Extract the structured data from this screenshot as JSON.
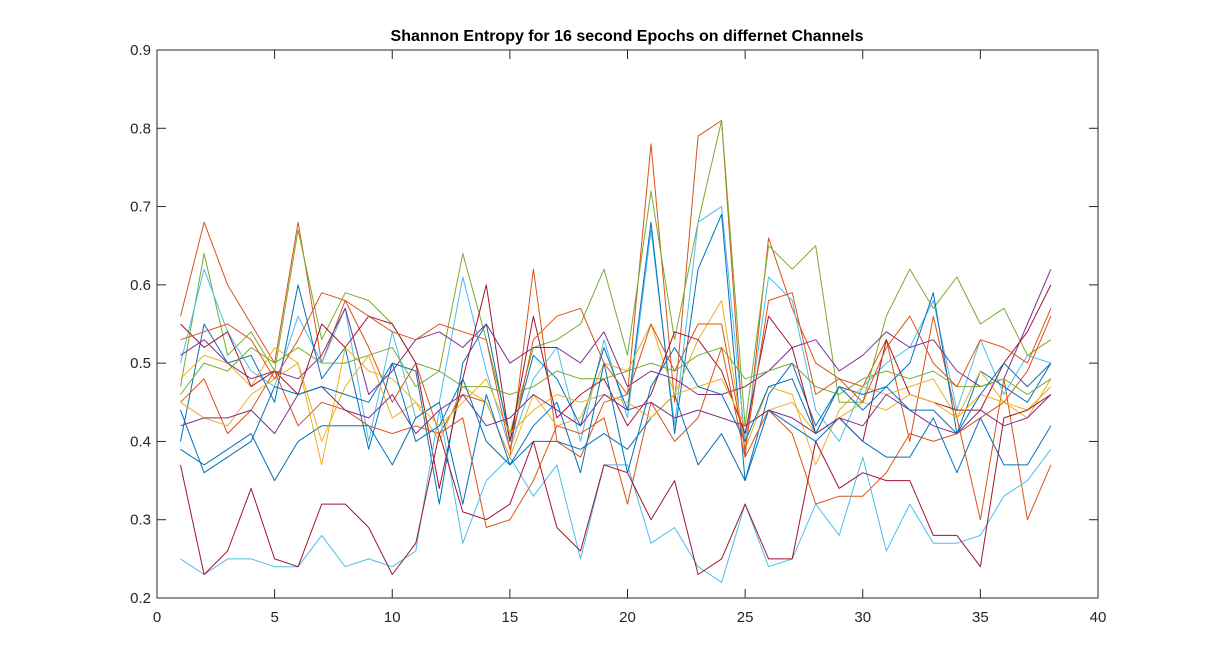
{
  "chart_data": {
    "type": "line",
    "title": "Shannon Entropy for 16 second Epochs on differnet Channels",
    "xlabel": "",
    "ylabel": "",
    "xlim": [
      0,
      40
    ],
    "ylim": [
      0.2,
      0.9
    ],
    "xticks": [
      0,
      5,
      10,
      15,
      20,
      25,
      30,
      35,
      40
    ],
    "yticks": [
      0.2,
      0.3,
      0.4,
      0.5,
      0.6,
      0.7,
      0.8,
      0.9
    ],
    "grid": false,
    "legend": "none",
    "x": [
      1,
      2,
      3,
      4,
      5,
      6,
      7,
      8,
      9,
      10,
      11,
      12,
      13,
      14,
      15,
      16,
      17,
      18,
      19,
      20,
      21,
      22,
      23,
      24,
      25,
      26,
      27,
      28,
      29,
      30,
      31,
      32,
      33,
      34,
      35,
      36,
      37,
      38
    ],
    "series": [
      {
        "color": "#D95319",
        "values": [
          0.56,
          0.68,
          0.6,
          0.55,
          0.5,
          0.68,
          0.5,
          0.58,
          0.52,
          0.45,
          0.5,
          0.41,
          0.46,
          0.45,
          0.38,
          0.62,
          0.4,
          0.38,
          0.45,
          0.46,
          0.78,
          0.45,
          0.79,
          0.81,
          0.38,
          0.66,
          0.57,
          0.5,
          0.48,
          0.47,
          0.53,
          0.4,
          0.56,
          0.43,
          0.3,
          0.48,
          0.3,
          0.37
        ]
      },
      {
        "color": "#77AC30",
        "values": [
          0.47,
          0.64,
          0.51,
          0.54,
          0.49,
          0.67,
          0.53,
          0.59,
          0.58,
          0.55,
          0.5,
          0.49,
          0.64,
          0.53,
          0.41,
          0.52,
          0.53,
          0.55,
          0.62,
          0.51,
          0.72,
          0.53,
          0.68,
          0.81,
          0.42,
          0.65,
          0.62,
          0.65,
          0.45,
          0.45,
          0.56,
          0.62,
          0.57,
          0.61,
          0.55,
          0.57,
          0.51,
          0.53
        ]
      },
      {
        "color": "#4DBEEE",
        "values": [
          0.5,
          0.62,
          0.54,
          0.49,
          0.47,
          0.56,
          0.5,
          0.57,
          0.4,
          0.54,
          0.43,
          0.45,
          0.61,
          0.49,
          0.39,
          0.48,
          0.52,
          0.4,
          0.53,
          0.43,
          0.67,
          0.42,
          0.68,
          0.7,
          0.4,
          0.61,
          0.58,
          0.44,
          0.4,
          0.47,
          0.5,
          0.52,
          0.58,
          0.44,
          0.53,
          0.46,
          0.51,
          0.5
        ]
      },
      {
        "color": "#0072BD",
        "values": [
          0.4,
          0.55,
          0.5,
          0.51,
          0.45,
          0.6,
          0.48,
          0.52,
          0.39,
          0.5,
          0.49,
          0.32,
          0.5,
          0.55,
          0.4,
          0.51,
          0.48,
          0.42,
          0.52,
          0.44,
          0.68,
          0.41,
          0.62,
          0.69,
          0.35,
          0.46,
          0.5,
          0.42,
          0.47,
          0.46,
          0.47,
          0.5,
          0.59,
          0.41,
          0.49,
          0.47,
          0.45,
          0.5
        ]
      },
      {
        "color": "#EDB120",
        "values": [
          0.48,
          0.51,
          0.5,
          0.47,
          0.52,
          0.5,
          0.37,
          0.52,
          0.49,
          0.48,
          0.45,
          0.4,
          0.47,
          0.45,
          0.38,
          0.46,
          0.42,
          0.43,
          0.5,
          0.49,
          0.55,
          0.46,
          0.53,
          0.58,
          0.39,
          0.47,
          0.46,
          0.37,
          0.44,
          0.47,
          0.46,
          0.47,
          0.48,
          0.43,
          0.49,
          0.45,
          0.43,
          0.48
        ]
      },
      {
        "color": "#7E2F8E",
        "values": [
          0.51,
          0.53,
          0.5,
          0.48,
          0.49,
          0.48,
          0.51,
          0.57,
          0.46,
          0.49,
          0.53,
          0.54,
          0.52,
          0.55,
          0.5,
          0.52,
          0.52,
          0.5,
          0.54,
          0.47,
          0.49,
          0.48,
          0.46,
          0.46,
          0.47,
          0.49,
          0.52,
          0.53,
          0.49,
          0.51,
          0.54,
          0.52,
          0.53,
          0.49,
          0.47,
          0.48,
          0.55,
          0.62
        ]
      },
      {
        "color": "#A2142F",
        "values": [
          0.55,
          0.52,
          0.54,
          0.47,
          0.49,
          0.46,
          0.55,
          0.52,
          0.56,
          0.55,
          0.5,
          0.34,
          0.48,
          0.6,
          0.4,
          0.56,
          0.43,
          0.46,
          0.48,
          0.42,
          0.46,
          0.54,
          0.53,
          0.49,
          0.41,
          0.56,
          0.52,
          0.41,
          0.43,
          0.4,
          0.53,
          0.46,
          0.45,
          0.44,
          0.44,
          0.5,
          0.54,
          0.6
        ]
      },
      {
        "color": "#D95319",
        "values": [
          0.45,
          0.48,
          0.41,
          0.44,
          0.49,
          0.42,
          0.45,
          0.44,
          0.42,
          0.41,
          0.42,
          0.41,
          0.43,
          0.29,
          0.3,
          0.35,
          0.42,
          0.41,
          0.43,
          0.32,
          0.45,
          0.4,
          0.43,
          0.52,
          0.38,
          0.44,
          0.41,
          0.32,
          0.33,
          0.33,
          0.36,
          0.41,
          0.4,
          0.41,
          0.43,
          0.45,
          0.49,
          0.56
        ]
      },
      {
        "color": "#77AC30",
        "values": [
          0.46,
          0.5,
          0.49,
          0.52,
          0.5,
          0.52,
          0.5,
          0.5,
          0.51,
          0.52,
          0.47,
          0.49,
          0.47,
          0.47,
          0.46,
          0.47,
          0.49,
          0.48,
          0.48,
          0.49,
          0.5,
          0.49,
          0.51,
          0.52,
          0.48,
          0.49,
          0.5,
          0.47,
          0.46,
          0.48,
          0.49,
          0.48,
          0.49,
          0.47,
          0.47,
          0.48,
          0.46,
          0.48
        ]
      },
      {
        "color": "#4DBEEE",
        "values": [
          0.25,
          0.23,
          0.25,
          0.25,
          0.24,
          0.24,
          0.28,
          0.24,
          0.25,
          0.24,
          0.26,
          0.44,
          0.27,
          0.35,
          0.38,
          0.33,
          0.37,
          0.25,
          0.37,
          0.37,
          0.27,
          0.29,
          0.24,
          0.22,
          0.32,
          0.24,
          0.25,
          0.32,
          0.28,
          0.38,
          0.26,
          0.32,
          0.27,
          0.27,
          0.28,
          0.33,
          0.35,
          0.39
        ]
      },
      {
        "color": "#0072BD",
        "values": [
          0.39,
          0.37,
          0.39,
          0.41,
          0.35,
          0.4,
          0.42,
          0.42,
          0.42,
          0.37,
          0.43,
          0.45,
          0.32,
          0.46,
          0.37,
          0.4,
          0.4,
          0.39,
          0.41,
          0.39,
          0.43,
          0.46,
          0.37,
          0.41,
          0.35,
          0.44,
          0.42,
          0.4,
          0.43,
          0.4,
          0.38,
          0.38,
          0.43,
          0.36,
          0.43,
          0.37,
          0.37,
          0.42
        ]
      },
      {
        "color": "#EDB120",
        "values": [
          0.45,
          0.43,
          0.42,
          0.46,
          0.48,
          0.5,
          0.4,
          0.47,
          0.51,
          0.43,
          0.45,
          0.42,
          0.45,
          0.48,
          0.41,
          0.44,
          0.46,
          0.45,
          0.46,
          0.45,
          0.43,
          0.46,
          0.47,
          0.48,
          0.42,
          0.44,
          0.45,
          0.41,
          0.43,
          0.45,
          0.44,
          0.46,
          0.45,
          0.43,
          0.46,
          0.45,
          0.44,
          0.47
        ]
      },
      {
        "color": "#7E2F8E",
        "values": [
          0.42,
          0.43,
          0.43,
          0.44,
          0.41,
          0.46,
          0.47,
          0.44,
          0.43,
          0.46,
          0.41,
          0.44,
          0.46,
          0.42,
          0.43,
          0.46,
          0.44,
          0.42,
          0.46,
          0.44,
          0.45,
          0.43,
          0.44,
          0.43,
          0.42,
          0.44,
          0.43,
          0.41,
          0.43,
          0.42,
          0.46,
          0.44,
          0.42,
          0.41,
          0.44,
          0.42,
          0.43,
          0.46
        ]
      },
      {
        "color": "#A2142F",
        "values": [
          0.37,
          0.23,
          0.26,
          0.34,
          0.25,
          0.24,
          0.32,
          0.32,
          0.29,
          0.23,
          0.27,
          0.41,
          0.31,
          0.3,
          0.32,
          0.4,
          0.29,
          0.26,
          0.37,
          0.36,
          0.3,
          0.35,
          0.23,
          0.25,
          0.32,
          0.25,
          0.25,
          0.4,
          0.34,
          0.36,
          0.35,
          0.35,
          0.28,
          0.28,
          0.24,
          0.43,
          0.44,
          0.46
        ]
      },
      {
        "color": "#0072BD",
        "values": [
          0.44,
          0.36,
          0.38,
          0.4,
          0.47,
          0.46,
          0.47,
          0.46,
          0.45,
          0.5,
          0.4,
          0.42,
          0.48,
          0.4,
          0.37,
          0.42,
          0.45,
          0.36,
          0.5,
          0.36,
          0.47,
          0.52,
          0.47,
          0.46,
          0.4,
          0.47,
          0.48,
          0.41,
          0.47,
          0.44,
          0.47,
          0.44,
          0.44,
          0.41,
          0.46,
          0.5,
          0.47,
          0.5
        ]
      },
      {
        "color": "#D95319",
        "values": [
          0.53,
          0.54,
          0.55,
          0.53,
          0.48,
          0.53,
          0.59,
          0.58,
          0.56,
          0.54,
          0.53,
          0.55,
          0.54,
          0.53,
          0.39,
          0.53,
          0.56,
          0.57,
          0.5,
          0.46,
          0.55,
          0.49,
          0.55,
          0.55,
          0.39,
          0.58,
          0.59,
          0.46,
          0.48,
          0.45,
          0.52,
          0.56,
          0.5,
          0.47,
          0.53,
          0.52,
          0.5,
          0.57
        ]
      }
    ]
  }
}
